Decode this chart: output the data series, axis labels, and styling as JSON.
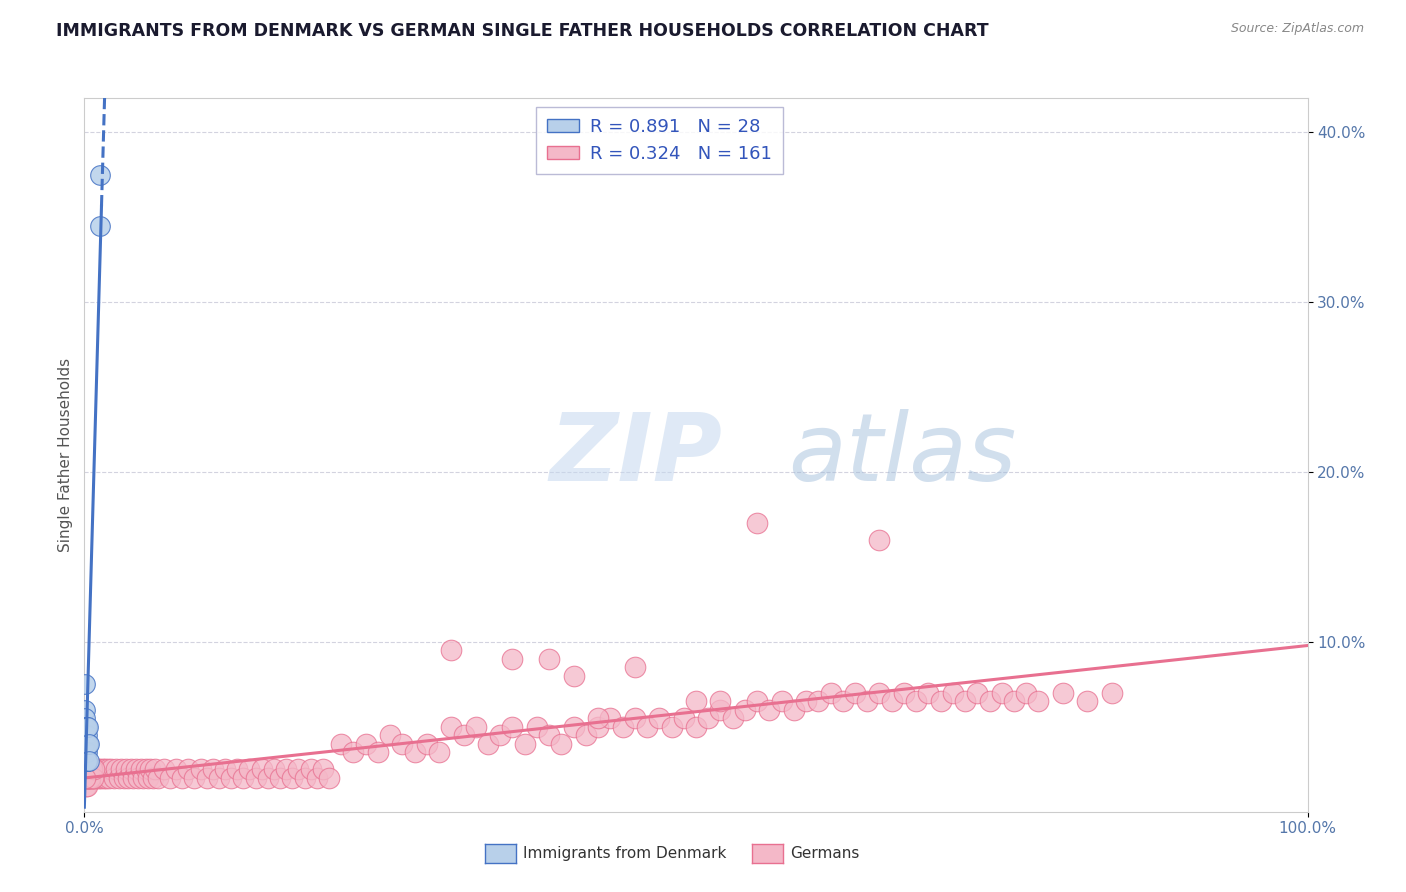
{
  "title": "IMMIGRANTS FROM DENMARK VS GERMAN SINGLE FATHER HOUSEHOLDS CORRELATION CHART",
  "source": "Source: ZipAtlas.com",
  "ylabel": "Single Father Households",
  "legend_denmark": {
    "R": 0.891,
    "N": 28,
    "color": "#b8d0ea",
    "line_color": "#4472c4"
  },
  "legend_german": {
    "R": 0.324,
    "N": 161,
    "color": "#f4b8c8",
    "line_color": "#e87090"
  },
  "background_color": "#ffffff",
  "plot_bg_color": "#ffffff",
  "grid_color": "#c8c8d8",
  "title_color": "#1a1a2e",
  "axis_label_color": "#5577aa",
  "denmark_x": [
    0.0003,
    0.0005,
    0.0006,
    0.0007,
    0.0008,
    0.0009,
    0.001,
    0.001,
    0.001,
    0.001,
    0.0012,
    0.0013,
    0.0014,
    0.0015,
    0.0016,
    0.0017,
    0.0018,
    0.002,
    0.002,
    0.002,
    0.0022,
    0.0025,
    0.003,
    0.003,
    0.0035,
    0.004,
    0.013,
    0.013
  ],
  "denmark_y": [
    0.04,
    0.06,
    0.05,
    0.075,
    0.04,
    0.055,
    0.03,
    0.04,
    0.05,
    0.03,
    0.035,
    0.04,
    0.03,
    0.05,
    0.04,
    0.03,
    0.045,
    0.03,
    0.04,
    0.05,
    0.035,
    0.03,
    0.04,
    0.05,
    0.04,
    0.03,
    0.375,
    0.345
  ],
  "german_x": [
    0.001,
    0.001,
    0.001,
    0.001,
    0.001,
    0.001,
    0.002,
    0.002,
    0.002,
    0.002,
    0.003,
    0.003,
    0.003,
    0.004,
    0.004,
    0.005,
    0.005,
    0.006,
    0.006,
    0.007,
    0.008,
    0.009,
    0.01,
    0.011,
    0.012,
    0.013,
    0.014,
    0.015,
    0.016,
    0.017,
    0.018,
    0.019,
    0.02,
    0.022,
    0.024,
    0.026,
    0.028,
    0.03,
    0.032,
    0.034,
    0.036,
    0.038,
    0.04,
    0.042,
    0.044,
    0.046,
    0.048,
    0.05,
    0.052,
    0.054,
    0.056,
    0.058,
    0.06,
    0.065,
    0.07,
    0.075,
    0.08,
    0.085,
    0.09,
    0.095,
    0.1,
    0.105,
    0.11,
    0.115,
    0.12,
    0.125,
    0.13,
    0.135,
    0.14,
    0.145,
    0.15,
    0.155,
    0.16,
    0.165,
    0.17,
    0.175,
    0.18,
    0.185,
    0.19,
    0.195,
    0.2,
    0.21,
    0.22,
    0.23,
    0.24,
    0.25,
    0.26,
    0.27,
    0.28,
    0.29,
    0.3,
    0.31,
    0.32,
    0.33,
    0.34,
    0.35,
    0.36,
    0.37,
    0.38,
    0.39,
    0.4,
    0.41,
    0.42,
    0.43,
    0.44,
    0.45,
    0.46,
    0.47,
    0.48,
    0.49,
    0.5,
    0.51,
    0.52,
    0.53,
    0.54,
    0.55,
    0.56,
    0.57,
    0.58,
    0.59,
    0.6,
    0.61,
    0.62,
    0.63,
    0.64,
    0.65,
    0.66,
    0.67,
    0.68,
    0.69,
    0.7,
    0.71,
    0.72,
    0.73,
    0.74,
    0.75,
    0.76,
    0.77,
    0.78,
    0.8,
    0.82,
    0.84,
    0.001,
    0.002,
    0.003,
    0.004,
    0.005,
    0.006,
    0.007,
    0.008,
    0.55,
    0.65,
    0.3,
    0.35,
    0.45,
    0.5,
    0.4,
    0.42,
    0.38,
    0.52,
    0.0005
  ],
  "german_y": [
    0.02,
    0.025,
    0.03,
    0.015,
    0.02,
    0.025,
    0.02,
    0.025,
    0.02,
    0.015,
    0.02,
    0.025,
    0.02,
    0.02,
    0.025,
    0.02,
    0.025,
    0.02,
    0.025,
    0.02,
    0.02,
    0.025,
    0.02,
    0.025,
    0.02,
    0.025,
    0.02,
    0.025,
    0.02,
    0.025,
    0.02,
    0.025,
    0.02,
    0.025,
    0.02,
    0.025,
    0.02,
    0.025,
    0.02,
    0.025,
    0.02,
    0.025,
    0.02,
    0.025,
    0.02,
    0.025,
    0.02,
    0.025,
    0.02,
    0.025,
    0.02,
    0.025,
    0.02,
    0.025,
    0.02,
    0.025,
    0.02,
    0.025,
    0.02,
    0.025,
    0.02,
    0.025,
    0.02,
    0.025,
    0.02,
    0.025,
    0.02,
    0.025,
    0.02,
    0.025,
    0.02,
    0.025,
    0.02,
    0.025,
    0.02,
    0.025,
    0.02,
    0.025,
    0.02,
    0.025,
    0.02,
    0.04,
    0.035,
    0.04,
    0.035,
    0.045,
    0.04,
    0.035,
    0.04,
    0.035,
    0.05,
    0.045,
    0.05,
    0.04,
    0.045,
    0.05,
    0.04,
    0.05,
    0.045,
    0.04,
    0.05,
    0.045,
    0.05,
    0.055,
    0.05,
    0.055,
    0.05,
    0.055,
    0.05,
    0.055,
    0.05,
    0.055,
    0.06,
    0.055,
    0.06,
    0.065,
    0.06,
    0.065,
    0.06,
    0.065,
    0.065,
    0.07,
    0.065,
    0.07,
    0.065,
    0.07,
    0.065,
    0.07,
    0.065,
    0.07,
    0.065,
    0.07,
    0.065,
    0.07,
    0.065,
    0.07,
    0.065,
    0.07,
    0.065,
    0.07,
    0.065,
    0.07,
    0.02,
    0.025,
    0.02,
    0.025,
    0.02,
    0.025,
    0.02,
    0.025,
    0.17,
    0.16,
    0.095,
    0.09,
    0.085,
    0.065,
    0.08,
    0.055,
    0.09,
    0.065,
    0.02
  ],
  "xlim": [
    0.0,
    1.0
  ],
  "ylim": [
    0.0,
    0.42
  ],
  "ytick_vals": [
    0.1,
    0.2,
    0.3,
    0.4
  ],
  "ytick_labels": [
    "10.0%",
    "20.0%",
    "30.0%",
    "40.0%"
  ],
  "xtick_vals": [
    0.0,
    1.0
  ],
  "xtick_labels": [
    "0.0%",
    "100.0%"
  ]
}
